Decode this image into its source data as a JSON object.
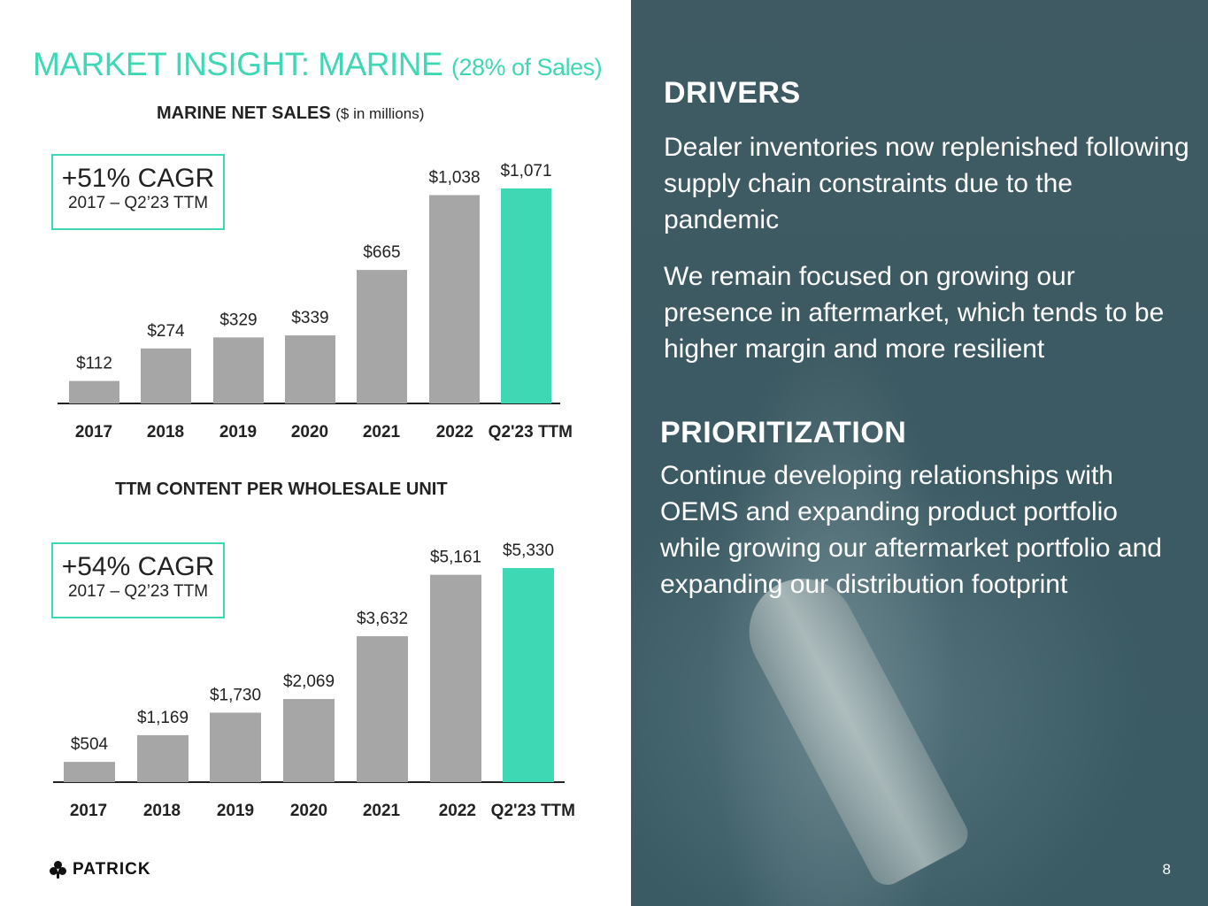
{
  "title": {
    "main": "MARKET INSIGHT: MARINE",
    "sub": "(28% of Sales)"
  },
  "chart_data": [
    {
      "type": "bar",
      "title": "MARINE NET SALES",
      "unit_note": "($ in millions)",
      "categories": [
        "2017",
        "2018",
        "2019",
        "2020",
        "2021",
        "2022",
        "Q2'23 TTM"
      ],
      "values": [
        112,
        274,
        329,
        339,
        665,
        1038,
        1071
      ],
      "value_labels": [
        "$112",
        "$274",
        "$329",
        "$339",
        "$665",
        "$1,038",
        "$1,071"
      ],
      "highlight_index": 6,
      "ylim": [
        0,
        1071
      ],
      "cagr": {
        "value": "+51% CAGR",
        "period": "2017 – Q2’23 TTM"
      }
    },
    {
      "type": "bar",
      "title": "TTM CONTENT PER WHOLESALE UNIT",
      "unit_note": "",
      "categories": [
        "2017",
        "2018",
        "2019",
        "2020",
        "2021",
        "2022",
        "Q2'23 TTM"
      ],
      "values": [
        504,
        1169,
        1730,
        2069,
        3632,
        5161,
        5330
      ],
      "value_labels": [
        "$504",
        "$1,169",
        "$1,730",
        "$2,069",
        "$3,632",
        "$5,161",
        "$5,330"
      ],
      "highlight_index": 6,
      "ylim": [
        0,
        5330
      ],
      "cagr": {
        "value": "+54% CAGR",
        "period": "2017 – Q2’23 TTM"
      }
    }
  ],
  "colors": {
    "accent": "#3fd8b4",
    "bar": "#a6a6a6",
    "panel": "#3d5a62",
    "axis": "#222222"
  },
  "drivers": {
    "heading": "DRIVERS",
    "paragraphs": [
      "Dealer inventories now replenished following supply chain constraints due to the pandemic",
      "We remain focused on growing our presence in aftermarket, which tends to be higher margin and more resilient"
    ]
  },
  "prioritization": {
    "heading": "PRIORITIZATION",
    "paragraph": "Continue developing relationships with OEMS and expanding product portfolio while growing our aftermarket portfolio and expanding our distribution footprint"
  },
  "logo": {
    "icon": "clover-icon",
    "text": "PATRICK"
  },
  "page_number": "8"
}
